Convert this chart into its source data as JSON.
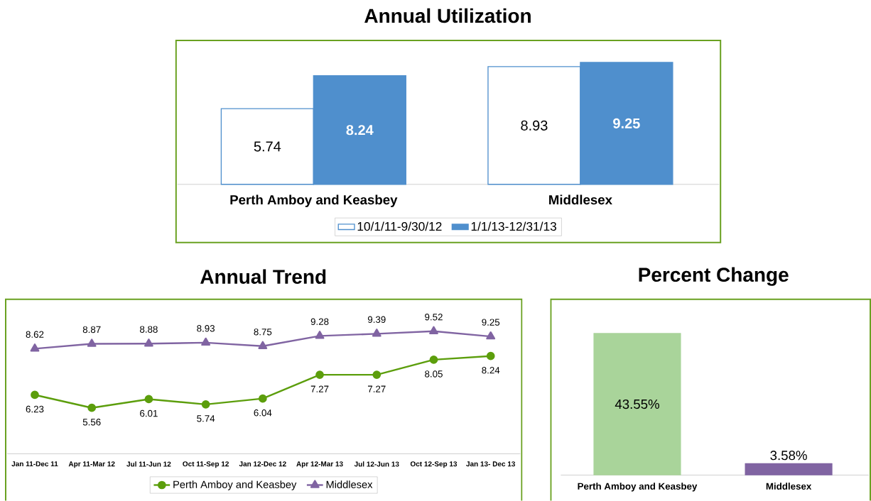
{
  "chart_data": [
    {
      "type": "bar",
      "title": "Annual Utilization",
      "categories": [
        "Perth Amboy and Keasbey",
        "Middlesex"
      ],
      "series": [
        {
          "name": "10/1/11-9/30/12",
          "color": "#ffffff",
          "values": [
            5.74,
            8.93
          ]
        },
        {
          "name": "1/1/13-12/31/13",
          "color": "#4f8fcd",
          "values": [
            8.24,
            9.25
          ]
        }
      ],
      "data_labels": true,
      "legend": "bottom"
    },
    {
      "type": "line",
      "title": "Annual Trend",
      "categories": [
        "Jan 11-Dec 11",
        "Apr 11-Mar 12",
        "Jul 11-Jun 12",
        "Oct 11-Sep 12",
        "Jan 12-Dec 12",
        "Apr 12-Mar 13",
        "Jul 12-Jun 13",
        "Oct 12-Sep 13",
        "Jan 13- Dec 13"
      ],
      "series": [
        {
          "name": "Perth Amboy and Keasbey",
          "color": "#5c9e0c",
          "marker": "circle",
          "values": [
            6.23,
            5.56,
            6.01,
            5.74,
            6.04,
            7.27,
            7.27,
            8.05,
            8.24
          ]
        },
        {
          "name": "Middlesex",
          "color": "#8064a2",
          "marker": "triangle",
          "values": [
            8.62,
            8.87,
            8.88,
            8.93,
            8.75,
            9.28,
            9.39,
            9.52,
            9.25
          ]
        }
      ],
      "data_labels": true,
      "legend": "bottom"
    },
    {
      "type": "bar",
      "title": "Percent Change",
      "categories": [
        "Perth Amboy and Keasbey",
        "Middlesex"
      ],
      "values": [
        43.55,
        3.58
      ],
      "colors": [
        "#a9d49a",
        "#8064a2"
      ],
      "value_labels": [
        "43.55%",
        "3.58%"
      ]
    }
  ]
}
